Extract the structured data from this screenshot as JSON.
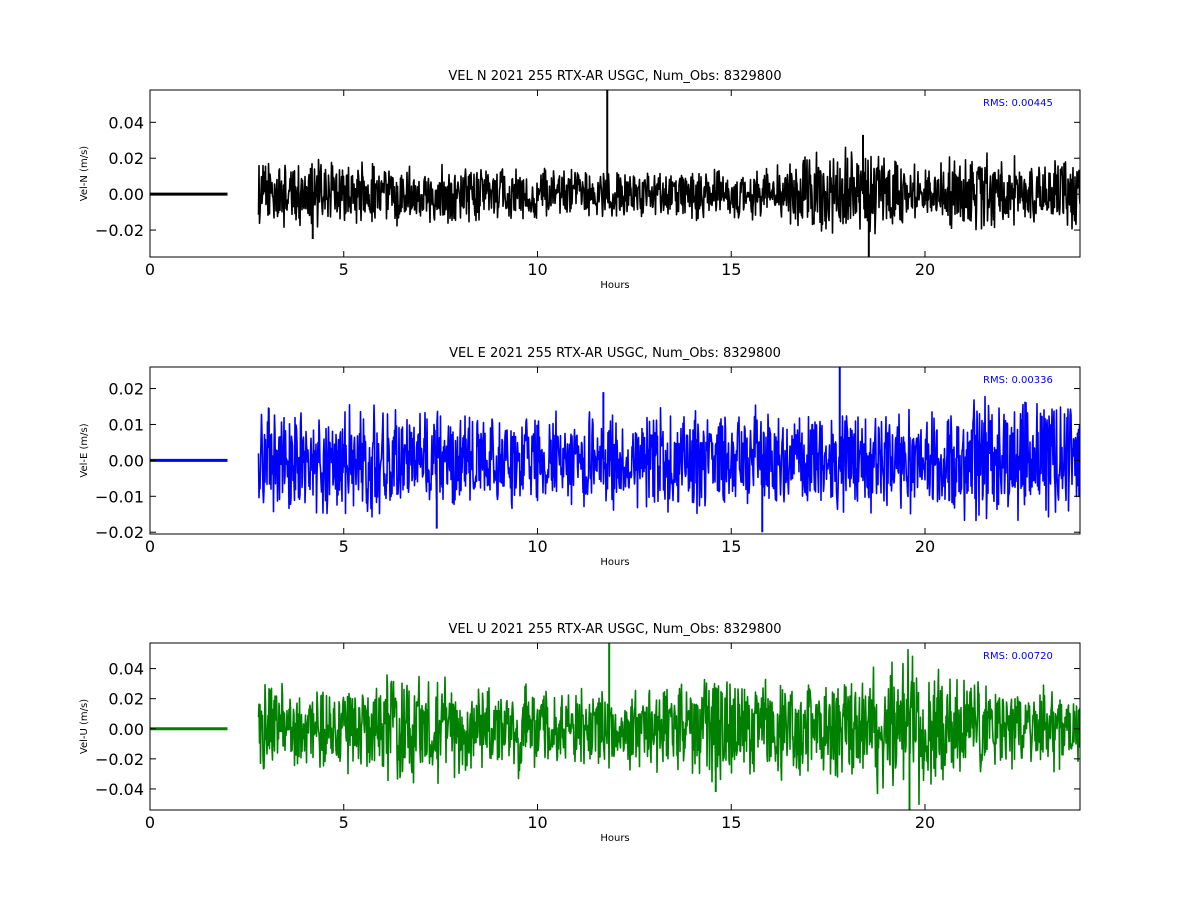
{
  "figure": {
    "width": 1200,
    "height": 900,
    "background": "#ffffff"
  },
  "chart_data": [
    {
      "type": "line",
      "title": "VEL N 2021 255 RTX-AR  USGC, Num_Obs: 8329800",
      "xlabel": "Hours",
      "ylabel": "Vel-N (m/s)",
      "color": "#000000",
      "annotation": "RMS:  0.00445",
      "xlim": [
        0,
        24
      ],
      "ylim": [
        -0.035,
        0.058
      ],
      "xticks": [
        0,
        5,
        10,
        15,
        20
      ],
      "yticks": [
        -0.02,
        0.0,
        0.02,
        0.04
      ],
      "ytick_labels": [
        "−0.02",
        "0.00",
        "0.02",
        "0.04"
      ],
      "flat_segment": [
        0,
        2
      ],
      "data_start": 2.8,
      "rms": 0.00445,
      "envelope": [
        [
          2.8,
          0.016
        ],
        [
          4,
          0.017
        ],
        [
          6,
          0.015
        ],
        [
          8,
          0.014
        ],
        [
          10,
          0.013
        ],
        [
          12,
          0.012
        ],
        [
          14,
          0.013
        ],
        [
          16,
          0.013
        ],
        [
          17,
          0.02
        ],
        [
          18,
          0.022
        ],
        [
          19,
          0.022
        ],
        [
          20,
          0.012
        ],
        [
          21,
          0.024
        ],
        [
          22,
          0.018
        ],
        [
          24,
          0.017
        ]
      ],
      "spikes": [
        [
          11.8,
          0.058
        ],
        [
          18.55,
          -0.035
        ],
        [
          18.4,
          0.033
        ],
        [
          4.2,
          -0.025
        ]
      ]
    },
    {
      "type": "line",
      "title": "VEL E 2021 255 RTX-AR  USGC, Num_Obs: 8329800",
      "xlabel": "Hours",
      "ylabel": "Vel-E (m/s)",
      "color": "#0000ff",
      "annotation": "RMS:  0.00336",
      "xlim": [
        0,
        24
      ],
      "ylim": [
        -0.0205,
        0.026
      ],
      "xticks": [
        0,
        5,
        10,
        15,
        20
      ],
      "yticks": [
        -0.02,
        -0.01,
        0.0,
        0.01,
        0.02
      ],
      "ytick_labels": [
        "−0.02",
        "−0.01",
        "0.00",
        "0.01",
        "0.02"
      ],
      "flat_segment": [
        0,
        2
      ],
      "data_start": 2.8,
      "rms": 0.00336,
      "envelope": [
        [
          2.8,
          0.013
        ],
        [
          4,
          0.014
        ],
        [
          6,
          0.013
        ],
        [
          8,
          0.012
        ],
        [
          10,
          0.012
        ],
        [
          12,
          0.012
        ],
        [
          14,
          0.013
        ],
        [
          16,
          0.012
        ],
        [
          18,
          0.012
        ],
        [
          20,
          0.012
        ],
        [
          21.5,
          0.017
        ],
        [
          22,
          0.016
        ],
        [
          24,
          0.013
        ]
      ],
      "spikes": [
        [
          17.8,
          0.026
        ],
        [
          11.7,
          0.019
        ],
        [
          15.8,
          -0.02
        ],
        [
          7.4,
          -0.019
        ]
      ]
    },
    {
      "type": "line",
      "title": "VEL U 2021 255 RTX-AR  USGC, Num_Obs: 8329800",
      "xlabel": "Hours",
      "ylabel": "Vel-U (m/s)",
      "color": "#008000",
      "annotation": "RMS:  0.00720",
      "xlim": [
        0,
        24
      ],
      "ylim": [
        -0.054,
        0.057
      ],
      "xticks": [
        0,
        5,
        10,
        15,
        20
      ],
      "yticks": [
        -0.04,
        -0.02,
        0.0,
        0.02,
        0.04
      ],
      "ytick_labels": [
        "−0.04",
        "−0.02",
        "0.00",
        "0.02",
        "0.04"
      ],
      "flat_segment": [
        0,
        2
      ],
      "data_start": 2.8,
      "rms": 0.0072,
      "envelope": [
        [
          2.8,
          0.024
        ],
        [
          5,
          0.026
        ],
        [
          6.5,
          0.034
        ],
        [
          8,
          0.028
        ],
        [
          10,
          0.026
        ],
        [
          12,
          0.022
        ],
        [
          14,
          0.028
        ],
        [
          15,
          0.03
        ],
        [
          17,
          0.03
        ],
        [
          18,
          0.028
        ],
        [
          19.5,
          0.044
        ],
        [
          20.5,
          0.034
        ],
        [
          22,
          0.026
        ],
        [
          24,
          0.022
        ]
      ],
      "spikes": [
        [
          11.85,
          0.057
        ],
        [
          19.6,
          -0.054
        ],
        [
          14.6,
          -0.042
        ]
      ]
    }
  ]
}
